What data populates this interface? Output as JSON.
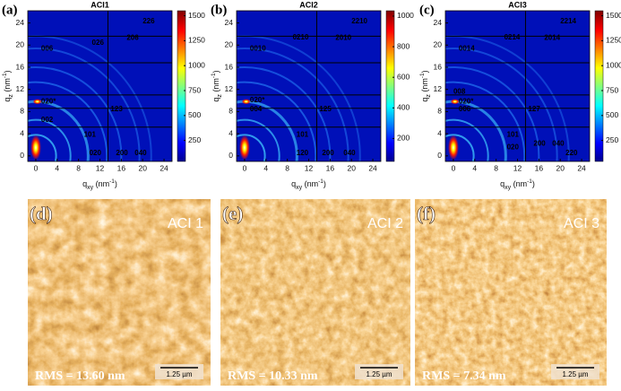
{
  "giwaxs": [
    {
      "label": "(a)",
      "title": "ACI1",
      "xlim": [
        -1.5,
        25.5
      ],
      "ylim": [
        -1,
        26.2
      ],
      "xticks": [
        0,
        4,
        8,
        12,
        16,
        20,
        24
      ],
      "yticks": [
        0,
        4,
        8,
        12,
        16,
        20,
        24
      ],
      "colorbar_lim": [
        40,
        1550
      ],
      "colorbar_ticks": [
        250,
        500,
        750,
        1000,
        1250,
        1500
      ],
      "peaks": [
        "006",
        "026",
        "226",
        "206",
        "020*",
        "002",
        "123",
        "101",
        "020",
        "200",
        "040"
      ]
    },
    {
      "label": "(b)",
      "title": "ACI2",
      "xlim": [
        -1.5,
        25.5
      ],
      "ylim": [
        -1,
        26.2
      ],
      "xticks": [
        0,
        4,
        8,
        12,
        16,
        20,
        24
      ],
      "yticks": [
        0,
        4,
        8,
        12,
        16,
        20,
        24
      ],
      "colorbar_lim": [
        50,
        1035
      ],
      "colorbar_ticks": [
        200,
        400,
        600,
        800,
        1000
      ],
      "peaks": [
        "0010",
        "0210",
        "2210",
        "2010",
        "020*",
        "004",
        "125",
        "101",
        "120",
        "200",
        "040"
      ]
    },
    {
      "label": "(c)",
      "title": "ACI3",
      "xlim": [
        -1.5,
        25.5
      ],
      "ylim": [
        -1,
        26.2
      ],
      "xticks": [
        0,
        4,
        8,
        12,
        16,
        20,
        24
      ],
      "yticks": [
        0,
        4,
        8,
        12,
        16,
        20,
        24
      ],
      "colorbar_lim": [
        40,
        1550
      ],
      "colorbar_ticks": [
        250,
        500,
        750,
        1000,
        1250,
        1500
      ],
      "peaks": [
        "0014",
        "0214",
        "2214",
        "2014",
        "008",
        "020*",
        "006",
        "127",
        "101",
        "020",
        "200",
        "040",
        "220"
      ]
    }
  ],
  "axis_labels": {
    "x": {
      "q": "q",
      "sub": "xy",
      "unit": " (nm",
      "sup": "-1",
      "close": ")"
    },
    "y": {
      "q": "q",
      "sub": "z",
      "unit": " (nm",
      "sup": "-1",
      "close": ")"
    }
  },
  "afm": [
    {
      "label": "(d)",
      "name": "ACI 1",
      "rms": "RMS = 13.60 nm",
      "scale": "1.25 µm"
    },
    {
      "label": "(e)",
      "name": "ACI 2",
      "rms": "RMS = 10.33 nm",
      "scale": "1.25 µm"
    },
    {
      "label": "(f)",
      "name": "ACI 3",
      "rms": "RMS = 7.34 nm",
      "scale": "1.25 µm"
    }
  ]
}
